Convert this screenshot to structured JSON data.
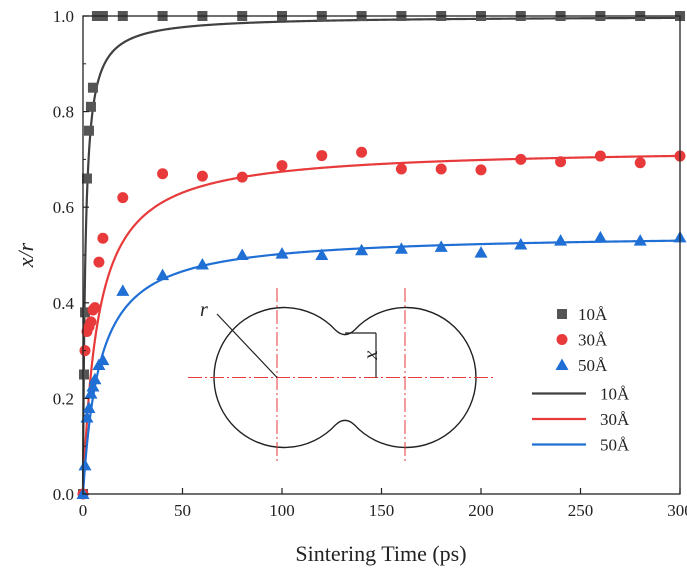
{
  "chart_data": {
    "type": "scatter",
    "xlabel": "Sintering Time (ps)",
    "ylabel": "x/r",
    "xlim": [
      0,
      300
    ],
    "ylim": [
      0,
      1.0
    ],
    "xticks": [
      "0",
      "50",
      "100",
      "150",
      "200",
      "250",
      "300"
    ],
    "yticks": [
      "0.0",
      "0.2",
      "0.4",
      "0.6",
      "0.8",
      "1.0"
    ],
    "grid": false,
    "legend_position": "right",
    "series": [
      {
        "name": "10Å",
        "marker": "square",
        "color": "#555555",
        "x": [
          0,
          0.5,
          1,
          2,
          3,
          4,
          5,
          7,
          9,
          10,
          20,
          40,
          60,
          80,
          100,
          120,
          140,
          160,
          180,
          200,
          220,
          240,
          260,
          280,
          300
        ],
        "y": [
          0,
          0.25,
          0.38,
          0.66,
          0.76,
          0.81,
          0.85,
          1.0,
          1.0,
          1.0,
          1.0,
          1.0,
          1.0,
          1.0,
          1.0,
          1.0,
          1.0,
          1.0,
          1.0,
          1.0,
          1.0,
          1.0,
          1.0,
          1.0,
          1.0
        ]
      },
      {
        "name": "30Å",
        "marker": "circle",
        "color": "#e83a3a",
        "x": [
          0,
          1,
          2,
          3,
          4,
          5,
          6,
          8,
          10,
          20,
          40,
          60,
          80,
          100,
          120,
          140,
          160,
          180,
          200,
          220,
          240,
          260,
          280,
          300
        ],
        "y": [
          0,
          0.3,
          0.34,
          0.35,
          0.36,
          0.385,
          0.39,
          0.485,
          0.535,
          0.62,
          0.67,
          0.665,
          0.663,
          0.687,
          0.708,
          0.715,
          0.68,
          0.68,
          0.678,
          0.7,
          0.695,
          0.707,
          0.693,
          0.707
        ]
      },
      {
        "name": "50Å",
        "marker": "triangle",
        "color": "#1f6fd4",
        "x": [
          0,
          1,
          2,
          3,
          4,
          5,
          6,
          8,
          10,
          20,
          40,
          60,
          80,
          100,
          120,
          140,
          160,
          180,
          200,
          220,
          240,
          260,
          280,
          300
        ],
        "y": [
          0,
          0.06,
          0.16,
          0.18,
          0.21,
          0.225,
          0.24,
          0.27,
          0.28,
          0.425,
          0.458,
          0.48,
          0.5,
          0.503,
          0.5,
          0.51,
          0.513,
          0.517,
          0.505,
          0.522,
          0.53,
          0.537,
          0.53,
          0.537
        ]
      }
    ],
    "fits": [
      {
        "name": "10Å",
        "color": "#404040",
        "a": 1.0,
        "b": 1.2
      },
      {
        "name": "30Å",
        "color": "#e83a3a",
        "a": 0.725,
        "b": 7.5
      },
      {
        "name": "50Å",
        "color": "#1f6fd4",
        "a": 0.545,
        "b": 8.5
      }
    ],
    "inset_labels": {
      "r": "r",
      "x": "x"
    }
  }
}
